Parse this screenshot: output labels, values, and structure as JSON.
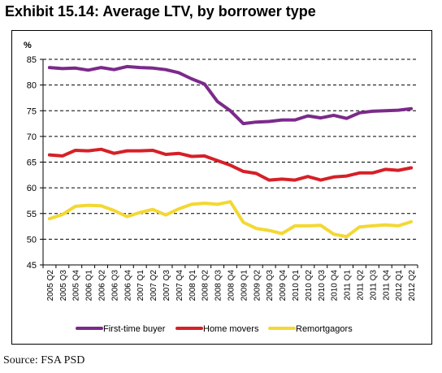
{
  "title": "Exhibit 15.14: Average LTV, by borrower type",
  "source": "Source: FSA PSD",
  "chart_data": {
    "type": "line",
    "ylabel": "%",
    "ylim": [
      45,
      85
    ],
    "yticks": [
      45,
      50,
      55,
      60,
      65,
      70,
      75,
      80,
      85
    ],
    "grid": "horizontal dashed",
    "legend_position": "bottom",
    "x": [
      "2005 Q2",
      "2005 Q3",
      "2005 Q4",
      "2006 Q1",
      "2006 Q2",
      "2006 Q3",
      "2006 Q4",
      "2007 Q1",
      "2007 Q2",
      "2007 Q3",
      "2007 Q4",
      "2008 Q1",
      "2008 Q2",
      "2008 Q3",
      "2008 Q4",
      "2009 Q1",
      "2009 Q2",
      "2009 Q3",
      "2009 Q4",
      "2010 Q1",
      "2010 Q2",
      "2010 Q3",
      "2010 Q4",
      "2011 Q1",
      "2011 Q2",
      "2011 Q3",
      "2011 Q4",
      "2012 Q1",
      "2012 Q2"
    ],
    "series": [
      {
        "name": "First-time buyer",
        "color": "#7b2a8a",
        "values": [
          83.4,
          83.2,
          83.3,
          82.9,
          83.4,
          83.0,
          83.6,
          83.4,
          83.3,
          83.0,
          82.4,
          81.2,
          80.2,
          76.8,
          75.0,
          72.5,
          72.8,
          72.9,
          73.2,
          73.2,
          74.0,
          73.6,
          74.1,
          73.5,
          74.6,
          74.9,
          75.0,
          75.1,
          75.4
        ]
      },
      {
        "name": "Home movers",
        "color": "#d62027",
        "values": [
          66.4,
          66.2,
          67.3,
          67.2,
          67.5,
          66.7,
          67.2,
          67.2,
          67.3,
          66.5,
          66.7,
          66.1,
          66.2,
          65.3,
          64.4,
          63.2,
          62.8,
          61.5,
          61.7,
          61.5,
          62.2,
          61.5,
          62.1,
          62.3,
          62.9,
          62.9,
          63.6,
          63.4,
          63.9
        ]
      },
      {
        "name": "Remortgagors",
        "color": "#f3d833",
        "values": [
          54.0,
          54.8,
          56.4,
          56.6,
          56.5,
          55.6,
          54.4,
          55.2,
          55.8,
          54.7,
          55.9,
          56.8,
          57.0,
          56.8,
          57.3,
          53.3,
          52.1,
          51.7,
          51.1,
          52.6,
          52.6,
          52.7,
          51.0,
          50.5,
          52.4,
          52.6,
          52.8,
          52.6,
          53.4
        ]
      }
    ]
  }
}
